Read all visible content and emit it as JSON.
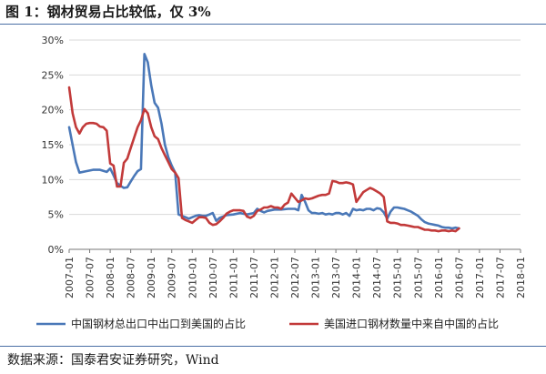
{
  "title": "图 1：钢材贸易占比较低，仅 3%",
  "source": "数据来源：国泰君安证券研究，Wind",
  "chart_data": {
    "type": "line",
    "ylim": [
      0,
      30
    ],
    "yticks": [
      "0%",
      "5%",
      "10%",
      "15%",
      "20%",
      "25%",
      "30%"
    ],
    "xticks": [
      "2007-01",
      "2007-07",
      "2008-01",
      "2008-07",
      "2009-01",
      "2009-07",
      "2010-01",
      "2010-07",
      "2011-01",
      "2011-07",
      "2012-01",
      "2012-07",
      "2013-01",
      "2013-07",
      "2014-01",
      "2014-07",
      "2015-01",
      "2015-07",
      "2016-01",
      "2016-07",
      "2017-01",
      "2017-07",
      "2018-01"
    ],
    "grid": "horizontal",
    "legend_position": "bottom",
    "series": [
      {
        "name": "中国钢材总出口中出口到美国的占比",
        "color": "#4a78b8",
        "points": [
          [
            0,
            17.5
          ],
          [
            2,
            12.5
          ],
          [
            3,
            11.0
          ],
          [
            5,
            11.2
          ],
          [
            7,
            11.4
          ],
          [
            9,
            11.4
          ],
          [
            11,
            11.1
          ],
          [
            12,
            11.6
          ],
          [
            13,
            10.6
          ],
          [
            14,
            9.5
          ],
          [
            15,
            9.1
          ],
          [
            16,
            8.8
          ],
          [
            17,
            8.9
          ],
          [
            18,
            9.7
          ],
          [
            19,
            10.5
          ],
          [
            20,
            11.2
          ],
          [
            21,
            11.5
          ],
          [
            22,
            28.0
          ],
          [
            23,
            26.8
          ],
          [
            24,
            23.5
          ],
          [
            25,
            21.0
          ],
          [
            26,
            20.3
          ],
          [
            27,
            18.0
          ],
          [
            28,
            15.0
          ],
          [
            29,
            13.2
          ],
          [
            30,
            12.0
          ],
          [
            31,
            11.0
          ],
          [
            32,
            5.0
          ],
          [
            33,
            4.8
          ],
          [
            34,
            4.6
          ],
          [
            35,
            4.4
          ],
          [
            36,
            4.6
          ],
          [
            37,
            4.8
          ],
          [
            38,
            4.9
          ],
          [
            39,
            4.8
          ],
          [
            40,
            4.8
          ],
          [
            41,
            5.0
          ],
          [
            42,
            5.2
          ],
          [
            43,
            4.1
          ],
          [
            44,
            4.5
          ],
          [
            45,
            4.7
          ],
          [
            46,
            4.9
          ],
          [
            48,
            5.0
          ],
          [
            50,
            5.2
          ],
          [
            52,
            5.0
          ],
          [
            54,
            5.2
          ],
          [
            55,
            5.8
          ],
          [
            56,
            5.5
          ],
          [
            57,
            5.3
          ],
          [
            58,
            5.5
          ],
          [
            60,
            5.7
          ],
          [
            62,
            5.7
          ],
          [
            64,
            5.8
          ],
          [
            66,
            5.8
          ],
          [
            67,
            5.6
          ],
          [
            68,
            7.8
          ],
          [
            69,
            6.8
          ],
          [
            70,
            5.6
          ],
          [
            71,
            5.2
          ],
          [
            72,
            5.2
          ],
          [
            73,
            5.1
          ],
          [
            74,
            5.2
          ],
          [
            75,
            5.0
          ],
          [
            76,
            5.1
          ],
          [
            77,
            5.0
          ],
          [
            78,
            5.2
          ],
          [
            79,
            5.2
          ],
          [
            80,
            5.0
          ],
          [
            81,
            5.2
          ],
          [
            82,
            4.8
          ],
          [
            83,
            5.8
          ],
          [
            84,
            5.6
          ],
          [
            85,
            5.7
          ],
          [
            86,
            5.6
          ],
          [
            87,
            5.8
          ],
          [
            88,
            5.8
          ],
          [
            89,
            5.6
          ],
          [
            90,
            5.9
          ],
          [
            91,
            5.8
          ],
          [
            92,
            5.3
          ],
          [
            93,
            4.4
          ],
          [
            94,
            5.4
          ],
          [
            95,
            6.0
          ],
          [
            96,
            6.0
          ],
          [
            97,
            5.9
          ],
          [
            98,
            5.8
          ],
          [
            99,
            5.6
          ],
          [
            100,
            5.4
          ],
          [
            101,
            5.1
          ],
          [
            102,
            4.8
          ],
          [
            103,
            4.3
          ],
          [
            104,
            3.9
          ],
          [
            105,
            3.7
          ],
          [
            106,
            3.6
          ],
          [
            107,
            3.5
          ],
          [
            108,
            3.4
          ],
          [
            109,
            3.2
          ],
          [
            110,
            3.1
          ],
          [
            111,
            3.1
          ],
          [
            112,
            3.0
          ],
          [
            113,
            3.1
          ],
          [
            114,
            3.0
          ]
        ]
      },
      {
        "name": "美国进口钢材数量中来自中国的占比",
        "color": "#c23a3a",
        "points": [
          [
            0,
            23.2
          ],
          [
            1,
            19.5
          ],
          [
            2,
            17.5
          ],
          [
            3,
            16.6
          ],
          [
            4,
            17.5
          ],
          [
            5,
            18.0
          ],
          [
            6,
            18.1
          ],
          [
            7,
            18.1
          ],
          [
            8,
            18.0
          ],
          [
            9,
            17.6
          ],
          [
            10,
            17.5
          ],
          [
            11,
            17.0
          ],
          [
            12,
            12.3
          ],
          [
            13,
            12.0
          ],
          [
            14,
            9.0
          ],
          [
            15,
            9.0
          ],
          [
            16,
            12.4
          ],
          [
            17,
            13.0
          ],
          [
            18,
            14.5
          ],
          [
            19,
            16.0
          ],
          [
            20,
            17.5
          ],
          [
            21,
            18.5
          ],
          [
            22,
            20.1
          ],
          [
            23,
            19.5
          ],
          [
            24,
            17.5
          ],
          [
            25,
            16.2
          ],
          [
            26,
            15.8
          ],
          [
            27,
            14.5
          ],
          [
            28,
            13.5
          ],
          [
            29,
            12.5
          ],
          [
            30,
            11.5
          ],
          [
            31,
            11.0
          ],
          [
            32,
            10.2
          ],
          [
            33,
            4.5
          ],
          [
            34,
            4.2
          ],
          [
            35,
            4.0
          ],
          [
            36,
            3.8
          ],
          [
            37,
            4.2
          ],
          [
            38,
            4.6
          ],
          [
            39,
            4.6
          ],
          [
            40,
            4.5
          ],
          [
            41,
            3.8
          ],
          [
            42,
            3.5
          ],
          [
            43,
            3.6
          ],
          [
            44,
            4.0
          ],
          [
            45,
            4.5
          ],
          [
            46,
            5.1
          ],
          [
            47,
            5.4
          ],
          [
            48,
            5.6
          ],
          [
            49,
            5.6
          ],
          [
            50,
            5.6
          ],
          [
            51,
            5.5
          ],
          [
            52,
            4.7
          ],
          [
            53,
            4.5
          ],
          [
            54,
            4.8
          ],
          [
            55,
            5.5
          ],
          [
            56,
            5.7
          ],
          [
            57,
            6.0
          ],
          [
            58,
            6.0
          ],
          [
            59,
            6.2
          ],
          [
            60,
            6.0
          ],
          [
            61,
            6.0
          ],
          [
            62,
            5.8
          ],
          [
            63,
            6.4
          ],
          [
            64,
            6.7
          ],
          [
            65,
            8.0
          ],
          [
            66,
            7.4
          ],
          [
            67,
            6.8
          ],
          [
            68,
            7.0
          ],
          [
            69,
            7.3
          ],
          [
            70,
            7.2
          ],
          [
            71,
            7.3
          ],
          [
            72,
            7.5
          ],
          [
            73,
            7.7
          ],
          [
            74,
            7.8
          ],
          [
            75,
            7.8
          ],
          [
            76,
            8.0
          ],
          [
            77,
            9.8
          ],
          [
            78,
            9.7
          ],
          [
            79,
            9.5
          ],
          [
            80,
            9.5
          ],
          [
            81,
            9.6
          ],
          [
            82,
            9.5
          ],
          [
            83,
            9.3
          ],
          [
            84,
            6.8
          ],
          [
            85,
            7.5
          ],
          [
            86,
            8.2
          ],
          [
            87,
            8.5
          ],
          [
            88,
            8.8
          ],
          [
            89,
            8.6
          ],
          [
            90,
            8.3
          ],
          [
            91,
            8.0
          ],
          [
            92,
            7.5
          ],
          [
            93,
            4.0
          ],
          [
            94,
            3.8
          ],
          [
            95,
            3.8
          ],
          [
            96,
            3.7
          ],
          [
            97,
            3.5
          ],
          [
            98,
            3.5
          ],
          [
            99,
            3.4
          ],
          [
            100,
            3.3
          ],
          [
            101,
            3.2
          ],
          [
            102,
            3.2
          ],
          [
            103,
            3.0
          ],
          [
            104,
            2.8
          ],
          [
            105,
            2.8
          ],
          [
            106,
            2.7
          ],
          [
            107,
            2.7
          ],
          [
            108,
            2.6
          ],
          [
            109,
            2.7
          ],
          [
            110,
            2.7
          ],
          [
            111,
            2.6
          ],
          [
            112,
            2.7
          ],
          [
            113,
            2.6
          ],
          [
            114,
            3.0
          ]
        ]
      }
    ]
  }
}
